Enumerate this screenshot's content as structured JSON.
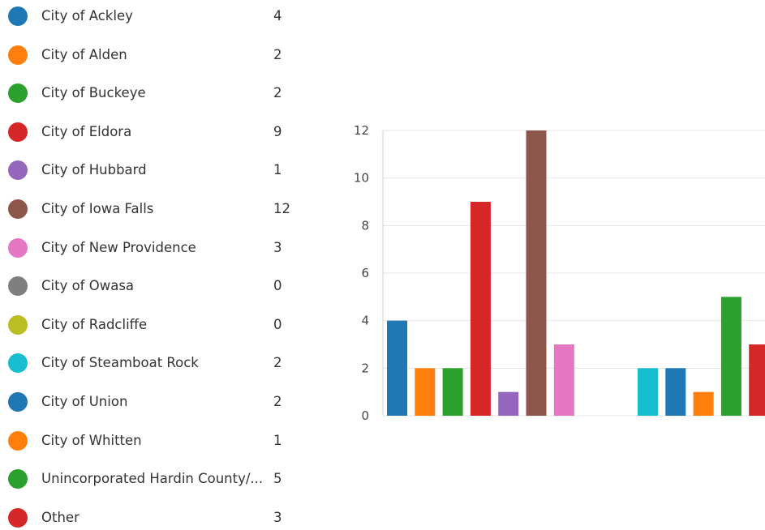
{
  "chart_data": {
    "type": "bar",
    "categories": [
      "City of Ackley",
      "City of Alden",
      "City of Buckeye",
      "City of Eldora",
      "City of Hubbard",
      "City of Iowa Falls",
      "City of New Providence",
      "City of Owasa",
      "City of Radcliffe",
      "City of Steamboat Rock",
      "City of Union",
      "City of Whitten",
      "Unincorporated Hardin County/...",
      "Other"
    ],
    "values": [
      4,
      2,
      2,
      9,
      1,
      12,
      3,
      0,
      0,
      2,
      2,
      1,
      5,
      3
    ],
    "colors": [
      "#1f77b4",
      "#ff7f0e",
      "#2ca02c",
      "#d62728",
      "#9467bd",
      "#8c564b",
      "#e377c2",
      "#7f7f7f",
      "#bcbd22",
      "#17becf",
      "#1f77b4",
      "#ff7f0e",
      "#2ca02c",
      "#d62728"
    ],
    "yticks": [
      "0",
      "2",
      "4",
      "6",
      "8",
      "10",
      "12"
    ],
    "ylim": [
      0,
      12
    ],
    "grid": true,
    "legend_position": "left"
  }
}
